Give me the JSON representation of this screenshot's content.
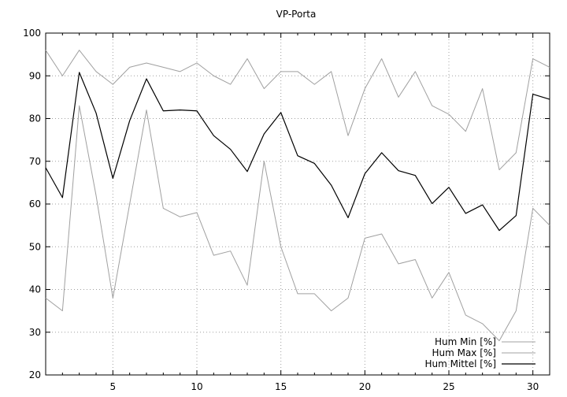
{
  "chart_data": {
    "type": "line",
    "title": "VP-Porta",
    "xlabel": "",
    "ylabel": "",
    "xlim": [
      1,
      31
    ],
    "ylim": [
      20,
      100
    ],
    "xticks": [
      5,
      10,
      15,
      20,
      25,
      30
    ],
    "yticks": [
      20,
      30,
      40,
      50,
      60,
      70,
      80,
      90,
      100
    ],
    "grid": true,
    "legend_position": "bottom-right",
    "x": [
      1,
      2,
      3,
      4,
      5,
      6,
      7,
      8,
      9,
      10,
      11,
      12,
      13,
      14,
      15,
      16,
      17,
      18,
      19,
      20,
      21,
      22,
      23,
      24,
      25,
      26,
      27,
      28,
      29,
      30,
      31
    ],
    "series": [
      {
        "name": "Hum Min [%]",
        "color": "#a0a0a0",
        "values": [
          38,
          35,
          83,
          62,
          38,
          60,
          82,
          59,
          57,
          58,
          48,
          49,
          41,
          70,
          50,
          39,
          39,
          35,
          38,
          52,
          53,
          46,
          47,
          38,
          44,
          34,
          32,
          28,
          35,
          59,
          55
        ]
      },
      {
        "name": "Hum Max [%]",
        "color": "#a0a0a0",
        "values": [
          96,
          90,
          96,
          91,
          88,
          92,
          93,
          92,
          91,
          93,
          90,
          88,
          94,
          87,
          91,
          91,
          88,
          91,
          76,
          87,
          94,
          85,
          91,
          83,
          81,
          77,
          87,
          68,
          72,
          94,
          92
        ]
      },
      {
        "name": "Hum Mittel [%]",
        "color": "#000000",
        "values": [
          68.5,
          61.5,
          90.8,
          81.3,
          66,
          79.5,
          89.3,
          81.8,
          82,
          81.8,
          76,
          72.8,
          67.6,
          76.4,
          81.4,
          71.3,
          69.5,
          64.4,
          56.8,
          67.1,
          72,
          67.8,
          66.7,
          60.1,
          63.9,
          57.8,
          59.8,
          53.8,
          57.3,
          85.7,
          84.5
        ]
      }
    ]
  }
}
